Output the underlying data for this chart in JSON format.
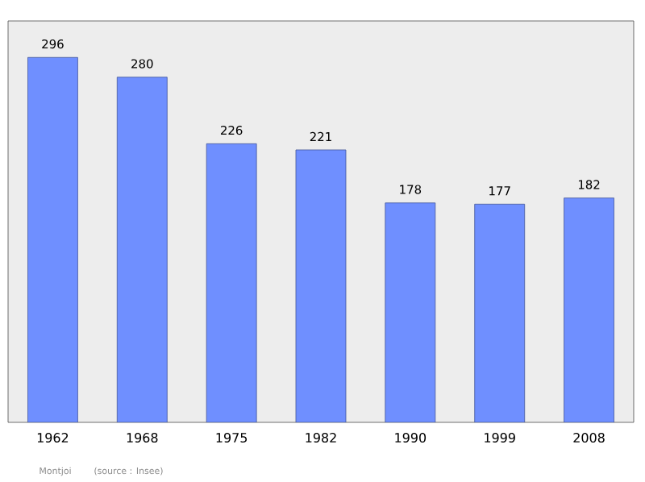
{
  "chart_data": {
    "type": "bar",
    "categories": [
      "1962",
      "1968",
      "1975",
      "1982",
      "1990",
      "1999",
      "2008"
    ],
    "values": [
      296,
      280,
      226,
      221,
      178,
      177,
      182
    ],
    "color": "#6f8fff",
    "data_labels": true,
    "annotations": [
      "Montjoi",
      "(source : Insee)"
    ]
  }
}
